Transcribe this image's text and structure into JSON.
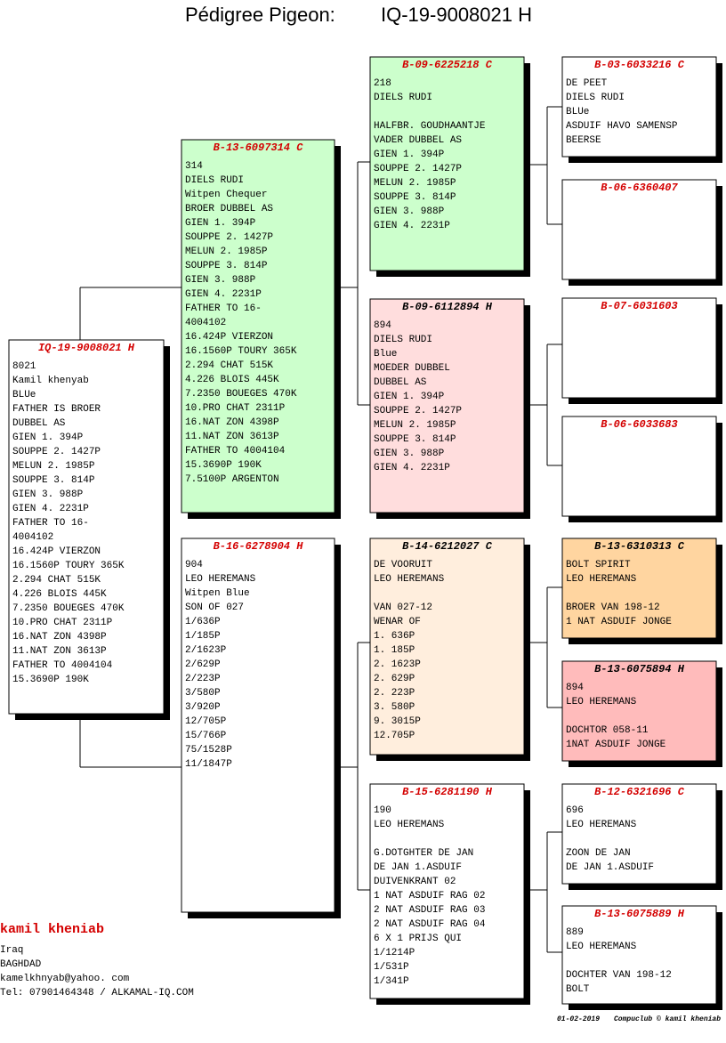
{
  "header": {
    "label": "Pédigree Pigeon:",
    "ring": "IQ-19-9008021 H"
  },
  "pigeons": [
    {
      "ring": "IQ-19-9008021 H",
      "ring_color": "#d40000",
      "background": "#ffffff",
      "paragraphs": [
        [
          "8021",
          "Kamil khenyab",
          "BLUe",
          "FATHER IS BROER",
          "DUBBEL AS",
          "GIEN 1. 394P",
          "SOUPPE 2. 1427P",
          "MELUN 2. 1985P",
          "SOUPPE 3. 814P",
          "GIEN 3. 988P",
          "GIEN 4. 2231P",
          "FATHER TO 16-",
          "4004102",
          "16.424P VIERZON",
          "16.1560P TOURY 365K",
          "2.294 CHAT 515K",
          "4.226 BLOIS 445K",
          "7.2350 BOUEGES 470K",
          "10.PRO CHAT 2311P",
          "16.NAT ZON 4398P",
          "11.NAT ZON 3613P",
          "FATHER TO 4004104",
          "15.3690P 190K"
        ]
      ]
    },
    {
      "ring": "B-13-6097314 C",
      "ring_color": "#d40000",
      "background": "#ccffcc",
      "paragraphs": [
        [
          "314",
          "DIELS RUDI",
          "Witpen Chequer",
          "BROER DUBBEL AS",
          "GIEN 1. 394P",
          "SOUPPE 2. 1427P",
          "MELUN 2. 1985P",
          "SOUPPE 3. 814P",
          "GIEN 3. 988P",
          "GIEN 4. 2231P",
          "FATHER TO 16-",
          "4004102",
          "16.424P VIERZON",
          "16.1560P TOURY 365K",
          "2.294 CHAT 515K",
          "4.226 BLOIS 445K",
          "7.2350 BOUEGES 470K",
          "10.PRO CHAT 2311P",
          "16.NAT ZON 4398P",
          "11.NAT ZON 3613P",
          "FATHER TO 4004104",
          "15.3690P 190K",
          "7.5100P ARGENTON"
        ]
      ]
    },
    {
      "ring": "B-16-6278904 H",
      "ring_color": "#d40000",
      "background": "#ffffff",
      "paragraphs": [
        [
          "904",
          "LEO HEREMANS",
          "Witpen Blue",
          "SON OF 027",
          "1/636P",
          "1/185P",
          "2/1623P",
          "2/629P",
          "2/223P",
          "3/580P",
          "3/920P",
          "12/705P",
          "15/766P",
          "75/1528P",
          "11/1847P"
        ]
      ]
    },
    {
      "ring": "B-09-6225218 C",
      "ring_color": "#d40000",
      "background": "#ccffcc",
      "paragraphs": [
        [
          "218",
          "DIELS RUDI"
        ],
        [
          "HALFBR. GOUDHAANTJE",
          "VADER DUBBEL AS",
          "GIEN 1. 394P",
          "SOUPPE 2. 1427P",
          "MELUN 2. 1985P",
          "SOUPPE 3. 814P",
          "GIEN 3. 988P",
          "GIEN 4. 2231P"
        ]
      ]
    },
    {
      "ring": "B-09-6112894 H",
      "ring_color": "#000000",
      "background": "#ffdddd",
      "paragraphs": [
        [
          "894",
          "DIELS RUDI",
          "Blue",
          "MOEDER DUBBEL",
          "DUBBEL AS",
          "GIEN 1. 394P",
          "SOUPPE 2. 1427P",
          "MELUN 2. 1985P",
          "SOUPPE 3. 814P",
          "GIEN 3. 988P",
          "GIEN 4. 2231P"
        ]
      ]
    },
    {
      "ring": "B-14-6212027 C",
      "ring_color": "#000000",
      "background": "#ffeedd",
      "paragraphs": [
        [
          "DE VOORUIT",
          "LEO HEREMANS"
        ],
        [
          "VAN 027-12",
          "WENAR OF",
          "1. 636P",
          "1. 185P",
          "2. 1623P",
          "2. 629P",
          "2. 223P",
          "3. 580P",
          "9. 3015P",
          "12.705P"
        ]
      ]
    },
    {
      "ring": "B-15-6281190 H",
      "ring_color": "#d40000",
      "background": "#ffffff",
      "paragraphs": [
        [
          "190",
          "LEO HEREMANS"
        ],
        [
          "G.DOTGHTER DE JAN",
          "DE JAN 1.ASDUIF",
          "DUIVENKRANT 02",
          "1 NAT ASDUIF RAG 02",
          "2 NAT ASDUIF RAG 03",
          "2 NAT ASDUIF RAG 04",
          "6 X 1 PRIJS QUI",
          "1/1214P",
          "1/531P",
          "1/341P"
        ]
      ]
    },
    {
      "ring": "B-03-6033216 C",
      "ring_color": "#d40000",
      "background": "#ffffff",
      "paragraphs": [
        [
          "DE PEET",
          "DIELS RUDI",
          "BLUe",
          "ASDUIF HAVO SAMENSP",
          "BEERSE"
        ]
      ]
    },
    {
      "ring": "B-06-6360407",
      "ring_color": "#d40000",
      "background": "#ffffff",
      "paragraphs": []
    },
    {
      "ring": "B-07-6031603",
      "ring_color": "#d40000",
      "background": "#ffffff",
      "paragraphs": []
    },
    {
      "ring": "B-06-6033683",
      "ring_color": "#d40000",
      "background": "#ffffff",
      "paragraphs": []
    },
    {
      "ring": "B-13-6310313 C",
      "ring_color": "#000000",
      "background": "#ffd5a0",
      "paragraphs": [
        [
          "BOLT SPIRIT",
          "LEO HEREMANS"
        ],
        [
          "BROER VAN 198-12",
          "1 NAT ASDUIF JONGE"
        ]
      ]
    },
    {
      "ring": "B-13-6075894 H",
      "ring_color": "#000000",
      "background": "#ffbbbb",
      "paragraphs": [
        [
          "894",
          "LEO HEREMANS"
        ],
        [
          "DOCHTOR 058-11",
          "1NAT ASDUIF JONGE"
        ]
      ]
    },
    {
      "ring": "B-12-6321696 C",
      "ring_color": "#d40000",
      "background": "#ffffff",
      "paragraphs": [
        [
          "696",
          "LEO HEREMANS"
        ],
        [
          "ZOON DE JAN",
          "DE JAN 1.ASDUIF"
        ]
      ]
    },
    {
      "ring": "B-13-6075889 H",
      "ring_color": "#d40000",
      "background": "#ffffff",
      "paragraphs": [
        [
          "889",
          "LEO HEREMANS"
        ],
        [
          "DOCHTER VAN 198-12",
          "BOLT"
        ]
      ]
    }
  ],
  "breeder": {
    "name": "kamil kheniab",
    "lines": [
      "Iraq",
      "BAGHDAD",
      "kamelkhnyab@yahoo. com",
      "Tel: 07901464348 / ALKAMAL-IQ.COM"
    ]
  },
  "footer": {
    "date": "01-02-2019",
    "credit": "Compuclub © kamil kheniab"
  }
}
